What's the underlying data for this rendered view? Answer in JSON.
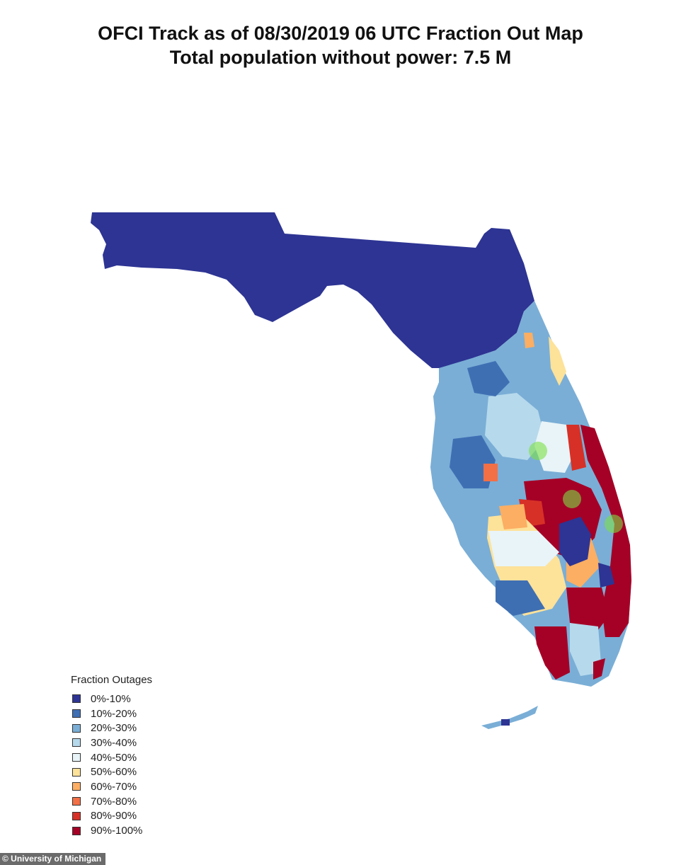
{
  "title": {
    "line1": "OFCI Track as of 08/30/2019 06 UTC Fraction Out Map",
    "line2": "Total population without power: 7.5 M"
  },
  "legend": {
    "title": "Fraction Outages",
    "items": [
      {
        "label": "0%-10%",
        "color": "#2d3493"
      },
      {
        "label": "10%-20%",
        "color": "#3f6fb3"
      },
      {
        "label": "20%-30%",
        "color": "#7aaed6"
      },
      {
        "label": "30%-40%",
        "color": "#b6d9ec"
      },
      {
        "label": "40%-50%",
        "color": "#e8f4f8"
      },
      {
        "label": "50%-60%",
        "color": "#fde29a"
      },
      {
        "label": "60%-70%",
        "color": "#fcae62"
      },
      {
        "label": "70%-80%",
        "color": "#f36f46"
      },
      {
        "label": "80%-90%",
        "color": "#d73027"
      },
      {
        "label": "90%-100%",
        "color": "#a50026"
      }
    ]
  },
  "credit": "© University of Michigan"
}
